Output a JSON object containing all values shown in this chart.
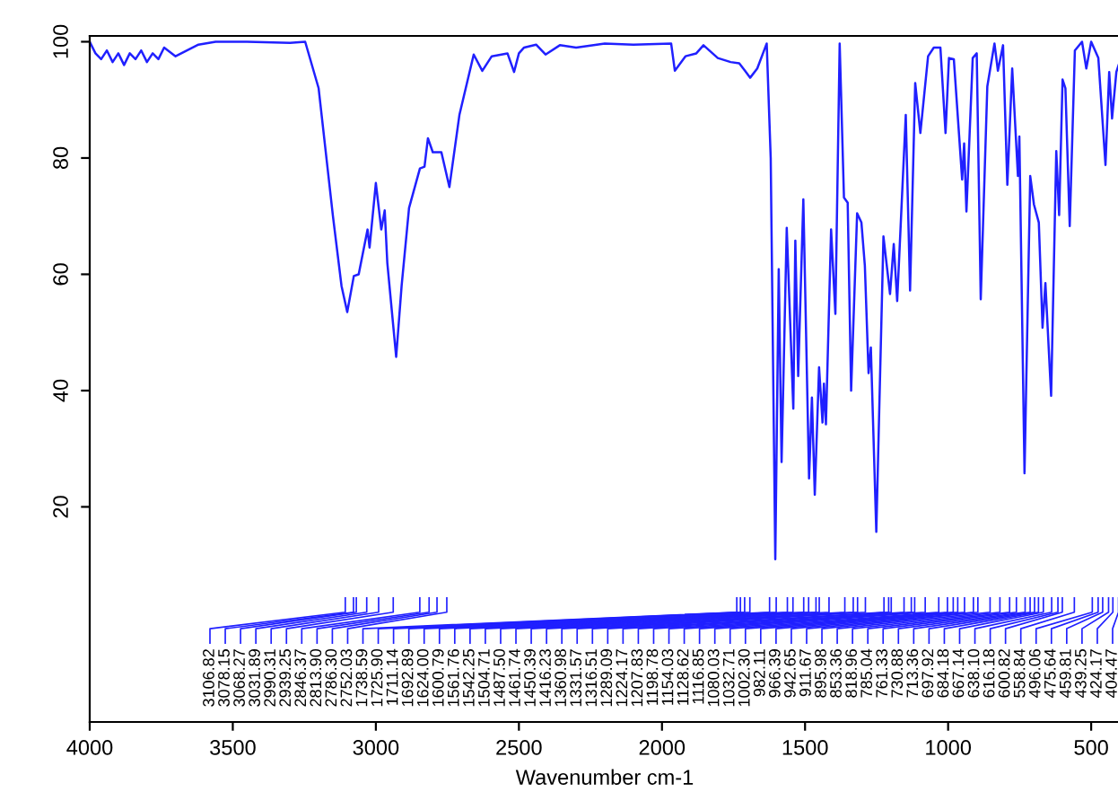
{
  "chart_data": {
    "type": "line",
    "xlabel": "Wavenumber cm-1",
    "xlim": [
      4000,
      400
    ],
    "ylim": [
      -17,
      101
    ],
    "xticks": [
      4000,
      3500,
      3000,
      2500,
      2000,
      1500,
      1000,
      500
    ],
    "yticks": [
      20,
      40,
      60,
      80,
      100
    ],
    "grid": false,
    "legend": false,
    "series": [
      {
        "color": "#2020ff",
        "x": [
          4000,
          3980,
          3960,
          3940,
          3920,
          3900,
          3880,
          3860,
          3840,
          3820,
          3800,
          3780,
          3760,
          3740,
          3700,
          3660,
          3620,
          3560,
          3450,
          3300,
          3247,
          3200,
          3150,
          3120,
          3100,
          3077,
          3060,
          3029,
          3022,
          3000,
          2981,
          2969,
          2960,
          2929,
          2910,
          2884,
          2846,
          2830,
          2818,
          2801,
          2771,
          2743,
          2708,
          2658,
          2628,
          2595,
          2540,
          2517,
          2500,
          2482,
          2440,
          2407,
          2357,
          2300,
          2200,
          2100,
          1968,
          1955,
          1918,
          1880,
          1855,
          1805,
          1760,
          1730,
          1710,
          1692,
          1667,
          1634,
          1620,
          1604,
          1592,
          1582,
          1564,
          1541,
          1534,
          1524,
          1506,
          1486,
          1476,
          1466,
          1451,
          1439,
          1434,
          1427,
          1409,
          1394,
          1379,
          1364,
          1351,
          1339,
          1318,
          1303,
          1291,
          1278,
          1270,
          1251,
          1226,
          1203,
          1190,
          1178,
          1148,
          1133,
          1115,
          1097,
          1070,
          1050,
          1027,
          1009,
          997,
          980,
          951,
          944,
          936,
          914,
          900,
          886,
          863,
          838,
          826,
          808,
          793,
          776,
          756,
          751,
          733,
          713,
          700,
          683,
          670,
          660,
          640,
          622,
          612,
          600,
          590,
          575,
          557,
          532,
          517,
          500,
          475,
          450,
          437,
          427,
          412,
          404
        ],
        "values": [
          100,
          98,
          97,
          98.5,
          96.5,
          98,
          96,
          98,
          97,
          98.5,
          96.5,
          98,
          97,
          99,
          97.5,
          98.5,
          99.5,
          100,
          100,
          99.8,
          100,
          92,
          70,
          58,
          53.5,
          59.7,
          60,
          67.7,
          64.6,
          75.7,
          67.7,
          71,
          62,
          45.8,
          58,
          71.4,
          78.2,
          78.5,
          83.4,
          81,
          81,
          75,
          87.4,
          97.8,
          95,
          97.5,
          98,
          94.8,
          98,
          99,
          99.5,
          97.8,
          99.4,
          99,
          99.7,
          99.5,
          99.7,
          95,
          97.5,
          98,
          99.4,
          97.2,
          96.5,
          96.3,
          95,
          93.8,
          95.4,
          99.7,
          80,
          11,
          60.9,
          27.7,
          68,
          36.9,
          65.8,
          42.5,
          72.9,
          24.9,
          38.8,
          22.1,
          44,
          34.5,
          41.2,
          34.2,
          67.7,
          53.2,
          99.7,
          73.2,
          72.3,
          40,
          70.5,
          68.9,
          61.5,
          43,
          47.4,
          15.7,
          66.5,
          56.6,
          65.2,
          55.4,
          87.4,
          57.2,
          92.9,
          84.3,
          97.5,
          99,
          99,
          84.3,
          97.2,
          97,
          76.3,
          82.5,
          70.8,
          97.2,
          98,
          55.7,
          92.3,
          99.7,
          95,
          99.4,
          75.4,
          95.4,
          76.9,
          83.7,
          25.8,
          76.9,
          72,
          68.9,
          50.8,
          58.5,
          39.1,
          81.2,
          70.2,
          93.5,
          92,
          68.3,
          98.5,
          100,
          95.4,
          100,
          97.2,
          78.8,
          94.8,
          86.8,
          94.8,
          96
        ]
      }
    ],
    "annotations": [
      {
        "text": "3106.82",
        "x": 3106.82
      },
      {
        "text": "3078.15",
        "x": 3078.15
      },
      {
        "text": "3068.27",
        "x": 3068.27
      },
      {
        "text": "3031.89",
        "x": 3031.89
      },
      {
        "text": "2990.31",
        "x": 2990.31
      },
      {
        "text": "2939.25",
        "x": 2939.25
      },
      {
        "text": "2846.37",
        "x": 2846.37
      },
      {
        "text": "2813.90",
        "x": 2813.9
      },
      {
        "text": "2786.30",
        "x": 2786.3
      },
      {
        "text": "2752.03",
        "x": 2752.03
      },
      {
        "text": "1738.59",
        "x": 1738.59
      },
      {
        "text": "1725.90",
        "x": 1725.9
      },
      {
        "text": "1711.14",
        "x": 1711.14
      },
      {
        "text": "1692.89",
        "x": 1692.89
      },
      {
        "text": "1624.00",
        "x": 1624.0
      },
      {
        "text": "1600.79",
        "x": 1600.79
      },
      {
        "text": "1561.76",
        "x": 1561.76
      },
      {
        "text": "1542.25",
        "x": 1542.25
      },
      {
        "text": "1504.71",
        "x": 1504.71
      },
      {
        "text": "1487.50",
        "x": 1487.5
      },
      {
        "text": "1461.74",
        "x": 1461.74
      },
      {
        "text": "1450.39",
        "x": 1450.39
      },
      {
        "text": "1416.23",
        "x": 1416.23
      },
      {
        "text": "1360.98",
        "x": 1360.98
      },
      {
        "text": "1331.57",
        "x": 1331.57
      },
      {
        "text": "1316.51",
        "x": 1316.51
      },
      {
        "text": "1289.09",
        "x": 1289.09
      },
      {
        "text": "1224.17",
        "x": 1224.17
      },
      {
        "text": "1207.83",
        "x": 1207.83
      },
      {
        "text": "1198.78",
        "x": 1198.78
      },
      {
        "text": "1154.03",
        "x": 1154.03
      },
      {
        "text": "1128.62",
        "x": 1128.62
      },
      {
        "text": "1116.85",
        "x": 1116.85
      },
      {
        "text": "1080.03",
        "x": 1080.03
      },
      {
        "text": "1032.71",
        "x": 1032.71
      },
      {
        "text": "1002.30",
        "x": 1002.3
      },
      {
        "text": "982.11",
        "x": 982.11
      },
      {
        "text": "966.39",
        "x": 966.39
      },
      {
        "text": "942.65",
        "x": 942.65
      },
      {
        "text": "911.67",
        "x": 911.67
      },
      {
        "text": "895.98",
        "x": 895.98
      },
      {
        "text": "853.36",
        "x": 853.36
      },
      {
        "text": "818.96",
        "x": 818.96
      },
      {
        "text": "785.04",
        "x": 785.04
      },
      {
        "text": "761.33",
        "x": 761.33
      },
      {
        "text": "730.88",
        "x": 730.88
      },
      {
        "text": "713.36",
        "x": 713.36
      },
      {
        "text": "697.92",
        "x": 697.92
      },
      {
        "text": "684.18",
        "x": 684.18
      },
      {
        "text": "667.14",
        "x": 667.14
      },
      {
        "text": "638.10",
        "x": 638.1
      },
      {
        "text": "616.18",
        "x": 616.18
      },
      {
        "text": "600.82",
        "x": 600.82
      },
      {
        "text": "558.84",
        "x": 558.84
      },
      {
        "text": "496.06",
        "x": 496.06
      },
      {
        "text": "475.64",
        "x": 475.64
      },
      {
        "text": "459.81",
        "x": 459.81
      },
      {
        "text": "439.25",
        "x": 439.25
      },
      {
        "text": "424.17",
        "x": 424.17
      },
      {
        "text": "404.47",
        "x": 404.47
      }
    ]
  }
}
